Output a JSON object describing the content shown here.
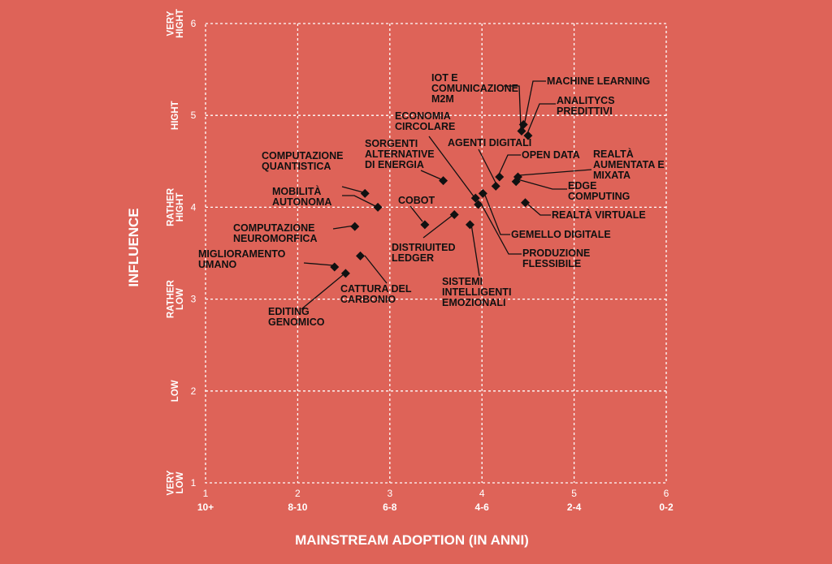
{
  "chart_data": {
    "type": "scatter",
    "xlabel": "MAINSTREAM ADOPTION (IN ANNI)",
    "ylabel": "INFLUENCE",
    "xlim": [
      1,
      6
    ],
    "ylim": [
      1,
      6
    ],
    "grid": true,
    "x_ticks": [
      "1",
      "2",
      "3",
      "4",
      "5",
      "6"
    ],
    "x_year_labels": [
      "10+",
      "8-10",
      "6-8",
      "4-6",
      "2-4",
      "0-2"
    ],
    "y_ticks": [
      "1",
      "2",
      "3",
      "4",
      "5",
      "6"
    ],
    "y_level_labels": [
      [
        "VERY",
        "LOW"
      ],
      [
        "LOW"
      ],
      [
        "RATHER",
        "LOW"
      ],
      [
        "RATHER",
        "HIGHT"
      ],
      [
        "HIGHT"
      ],
      [
        "VERY",
        "HIGHT"
      ]
    ],
    "points": [
      {
        "name": [
          "MACHINE LEARNING"
        ],
        "x": 4.45,
        "y": 4.9
      },
      {
        "name": [
          "IOT E",
          "COMUNICAZIONE",
          "M2M"
        ],
        "x": 4.43,
        "y": 4.83
      },
      {
        "name": [
          "ANALITYCS",
          "PREDITTIVI"
        ],
        "x": 4.5,
        "y": 4.78
      },
      {
        "name": [
          "OPEN DATA"
        ],
        "x": 4.19,
        "y": 4.33
      },
      {
        "name": [
          "REALTÀ",
          "AUMENTATA E",
          "MIXATA"
        ],
        "x": 4.39,
        "y": 4.33
      },
      {
        "name": [
          "EDGE",
          "COMPUTING"
        ],
        "x": 4.37,
        "y": 4.28
      },
      {
        "name": [
          "AGENTI DIGITALI"
        ],
        "x": 4.15,
        "y": 4.23
      },
      {
        "name": [
          "ECONOMIA",
          "CIRCOLARE"
        ],
        "x": 3.93,
        "y": 4.1
      },
      {
        "name": [
          "GEMELLO DIGITALE"
        ],
        "x": 4.01,
        "y": 4.15
      },
      {
        "name": [
          "PRODUZIONE",
          "FLESSIBILE"
        ],
        "x": 3.96,
        "y": 4.03
      },
      {
        "name": [
          "REALTÀ VIRTUALE"
        ],
        "x": 4.47,
        "y": 4.05
      },
      {
        "name": [
          "SORGENTI",
          "ALTERNATIVE",
          "DI ENERGIA"
        ],
        "x": 3.58,
        "y": 4.29
      },
      {
        "name": [
          "COMPUTAZIONE",
          "QUANTISTICA"
        ],
        "x": 2.73,
        "y": 4.15
      },
      {
        "name": [
          "MOBILITÀ",
          "AUTONOMA"
        ],
        "x": 2.87,
        "y": 4.0
      },
      {
        "name": [
          "COBOT"
        ],
        "x": 3.38,
        "y": 3.81
      },
      {
        "name": [
          "DISTRIUITED",
          "LEDGER"
        ],
        "x": 3.7,
        "y": 3.92
      },
      {
        "name": [
          "SISTEMI",
          "INTELLIGENTI",
          "EMOZIONALI"
        ],
        "x": 3.87,
        "y": 3.81
      },
      {
        "name": [
          "COMPUTAZIONE",
          "NEUROMORFICA"
        ],
        "x": 2.62,
        "y": 3.79
      },
      {
        "name": [
          "CATTURA DEL",
          "CARBONIO"
        ],
        "x": 2.68,
        "y": 3.47
      },
      {
        "name": [
          "MIGLIORAMENTO",
          "UMANO"
        ],
        "x": 2.4,
        "y": 3.35
      },
      {
        "name": [
          "EDITING",
          "GENOMICO"
        ],
        "x": 2.52,
        "y": 3.28
      }
    ]
  }
}
